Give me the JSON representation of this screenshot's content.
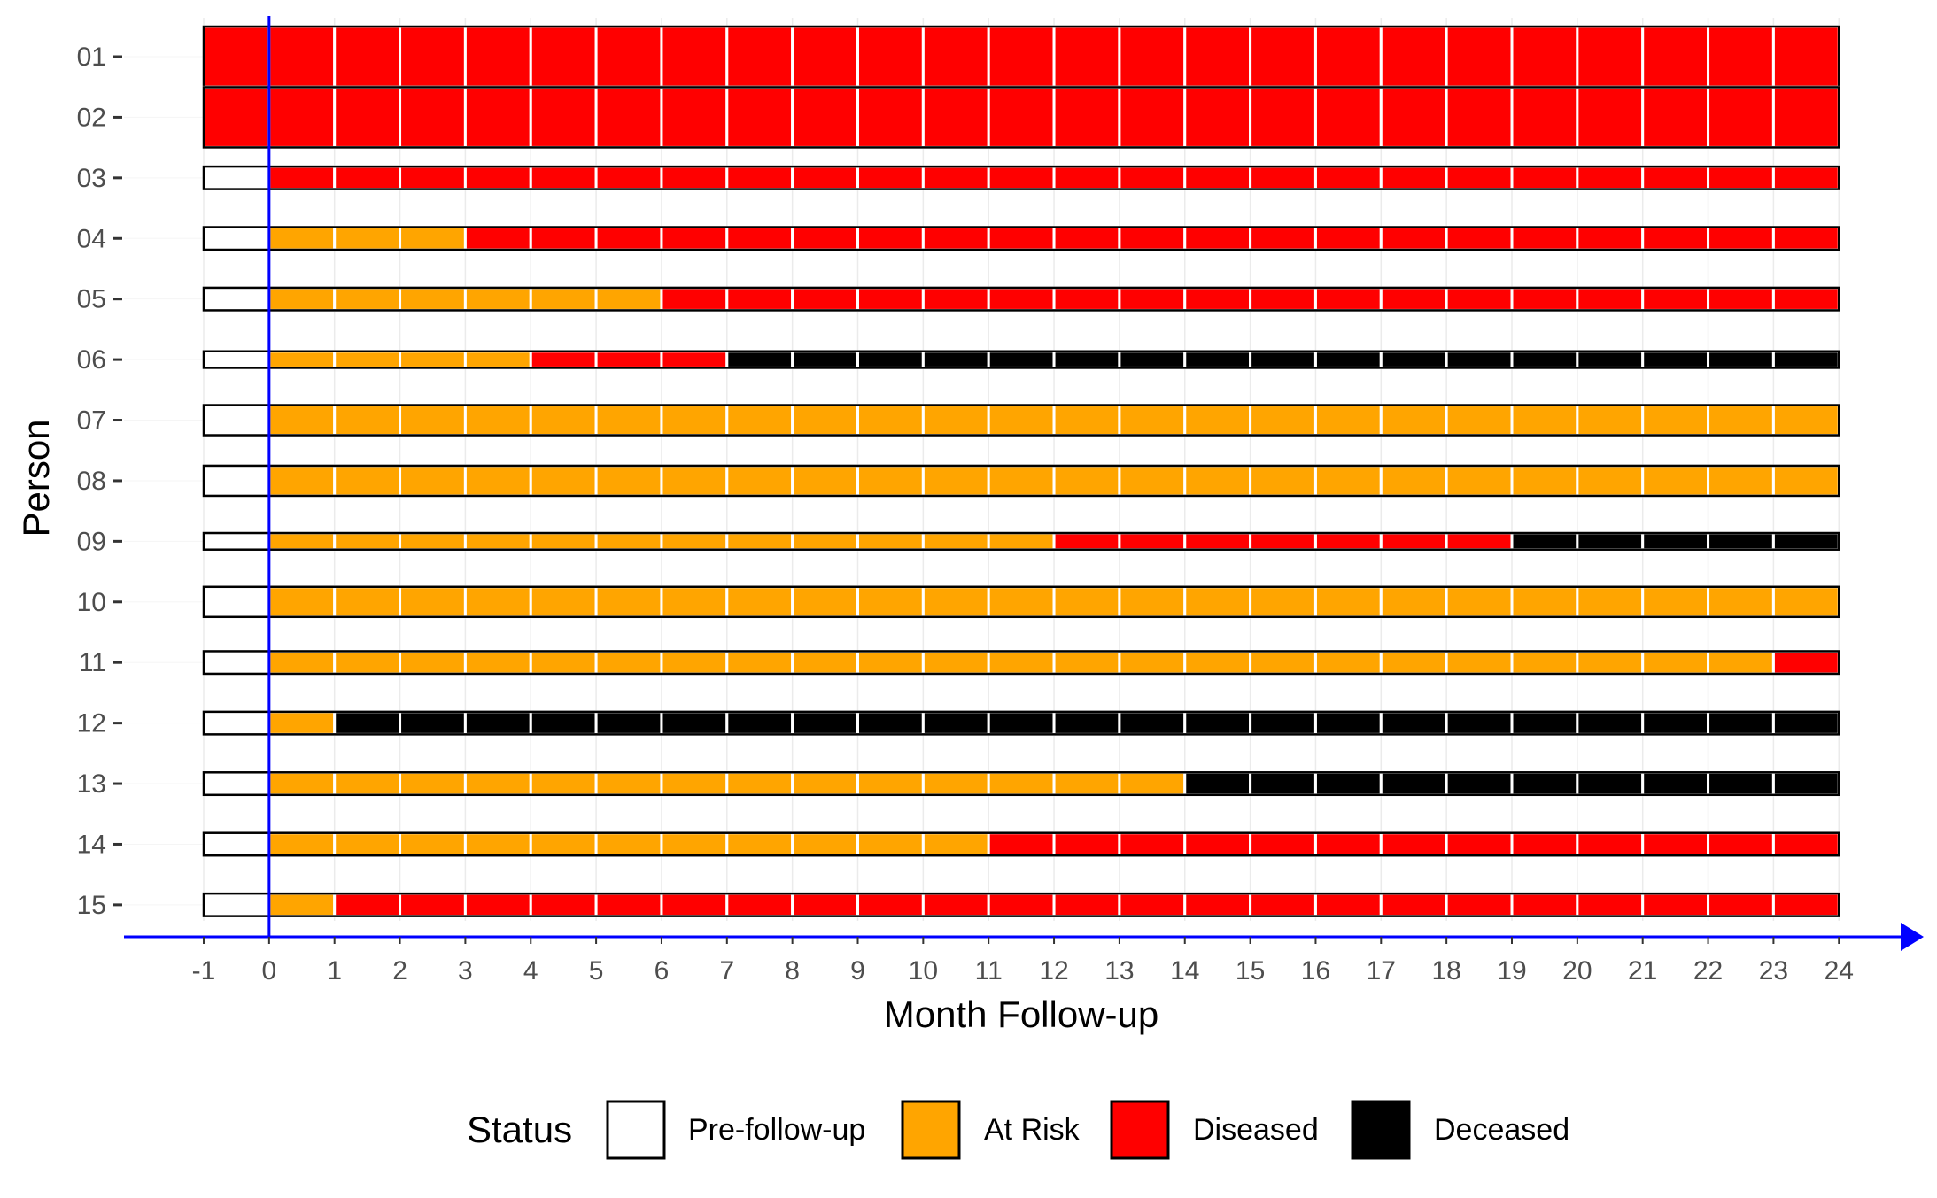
{
  "chart_data": {
    "type": "bar",
    "subtype": "swimmer-timeline",
    "title": "",
    "xlabel": "Month Follow-up",
    "ylabel": "Person",
    "x_ticks": [
      -1,
      0,
      1,
      2,
      3,
      4,
      5,
      6,
      7,
      8,
      9,
      10,
      11,
      12,
      13,
      14,
      15,
      16,
      17,
      18,
      19,
      20,
      21,
      22,
      23,
      24
    ],
    "xlim": [
      -1,
      24
    ],
    "grid": true,
    "reference_line": {
      "x": 0,
      "color": "#0000ff"
    },
    "legend": {
      "title": "Status",
      "position": "bottom",
      "entries": [
        {
          "name": "Pre-follow-up",
          "color": "#ffffff"
        },
        {
          "name": "At Risk",
          "color": "#ffa500"
        },
        {
          "name": "Diseased",
          "color": "#ff0000"
        },
        {
          "name": "Deceased",
          "color": "#000000"
        }
      ]
    },
    "persons": [
      {
        "id": "01",
        "thickness": 2,
        "segments": [
          {
            "status": "Diseased",
            "start": -1,
            "end": 24
          }
        ]
      },
      {
        "id": "02",
        "thickness": 2,
        "segments": [
          {
            "status": "Diseased",
            "start": -1,
            "end": 24
          }
        ]
      },
      {
        "id": "03",
        "thickness": 0.75,
        "segments": [
          {
            "status": "Pre-follow-up",
            "start": -1,
            "end": 0
          },
          {
            "status": "Diseased",
            "start": 0,
            "end": 24
          }
        ]
      },
      {
        "id": "04",
        "thickness": 0.75,
        "segments": [
          {
            "status": "Pre-follow-up",
            "start": -1,
            "end": 0
          },
          {
            "status": "At Risk",
            "start": 0,
            "end": 3
          },
          {
            "status": "Diseased",
            "start": 3,
            "end": 24
          }
        ]
      },
      {
        "id": "05",
        "thickness": 0.75,
        "segments": [
          {
            "status": "Pre-follow-up",
            "start": -1,
            "end": 0
          },
          {
            "status": "At Risk",
            "start": 0,
            "end": 6
          },
          {
            "status": "Diseased",
            "start": 6,
            "end": 24
          }
        ]
      },
      {
        "id": "06",
        "thickness": 0.55,
        "segments": [
          {
            "status": "Pre-follow-up",
            "start": -1,
            "end": 0
          },
          {
            "status": "At Risk",
            "start": 0,
            "end": 4
          },
          {
            "status": "Diseased",
            "start": 4,
            "end": 7
          },
          {
            "status": "Deceased",
            "start": 7,
            "end": 24
          }
        ]
      },
      {
        "id": "07",
        "thickness": 1,
        "segments": [
          {
            "status": "Pre-follow-up",
            "start": -1,
            "end": 0
          },
          {
            "status": "At Risk",
            "start": 0,
            "end": 24
          }
        ]
      },
      {
        "id": "08",
        "thickness": 1,
        "segments": [
          {
            "status": "Pre-follow-up",
            "start": -1,
            "end": 0
          },
          {
            "status": "At Risk",
            "start": 0,
            "end": 24
          }
        ]
      },
      {
        "id": "09",
        "thickness": 0.55,
        "segments": [
          {
            "status": "Pre-follow-up",
            "start": -1,
            "end": 0
          },
          {
            "status": "At Risk",
            "start": 0,
            "end": 12
          },
          {
            "status": "Diseased",
            "start": 12,
            "end": 19
          },
          {
            "status": "Deceased",
            "start": 19,
            "end": 24
          }
        ]
      },
      {
        "id": "10",
        "thickness": 1,
        "segments": [
          {
            "status": "Pre-follow-up",
            "start": -1,
            "end": 0
          },
          {
            "status": "At Risk",
            "start": 0,
            "end": 24
          }
        ]
      },
      {
        "id": "11",
        "thickness": 0.75,
        "segments": [
          {
            "status": "Pre-follow-up",
            "start": -1,
            "end": 0
          },
          {
            "status": "At Risk",
            "start": 0,
            "end": 23
          },
          {
            "status": "Diseased",
            "start": 23,
            "end": 24
          }
        ]
      },
      {
        "id": "12",
        "thickness": 0.75,
        "segments": [
          {
            "status": "Pre-follow-up",
            "start": -1,
            "end": 0
          },
          {
            "status": "At Risk",
            "start": 0,
            "end": 1
          },
          {
            "status": "Deceased",
            "start": 1,
            "end": 24
          }
        ]
      },
      {
        "id": "13",
        "thickness": 0.75,
        "segments": [
          {
            "status": "Pre-follow-up",
            "start": -1,
            "end": 0
          },
          {
            "status": "At Risk",
            "start": 0,
            "end": 14
          },
          {
            "status": "Deceased",
            "start": 14,
            "end": 24
          }
        ]
      },
      {
        "id": "14",
        "thickness": 0.75,
        "segments": [
          {
            "status": "Pre-follow-up",
            "start": -1,
            "end": 0
          },
          {
            "status": "At Risk",
            "start": 0,
            "end": 11
          },
          {
            "status": "Diseased",
            "start": 11,
            "end": 24
          }
        ]
      },
      {
        "id": "15",
        "thickness": 0.75,
        "segments": [
          {
            "status": "Pre-follow-up",
            "start": -1,
            "end": 0
          },
          {
            "status": "At Risk",
            "start": 0,
            "end": 1
          },
          {
            "status": "Diseased",
            "start": 1,
            "end": 24
          }
        ]
      }
    ]
  }
}
